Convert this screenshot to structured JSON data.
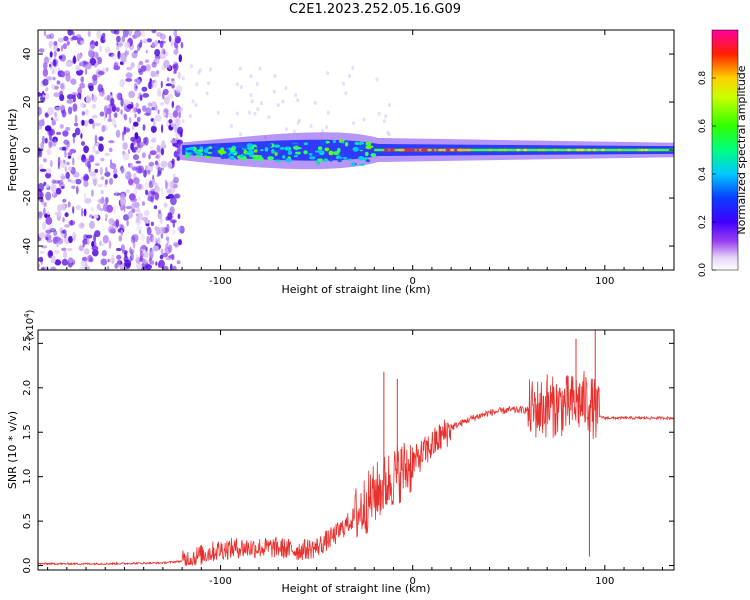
{
  "title": "C2E1.2023.252.05.16.G09",
  "chart_data": [
    {
      "type": "heatmap",
      "description_role": "spectrogram",
      "xlabel": "Height of straight line (km)",
      "ylabel": "Frequency (Hz)",
      "xlim": [
        -195,
        136
      ],
      "ylim": [
        -50,
        50
      ],
      "xticks": [
        -100,
        0,
        100
      ],
      "yticks": [
        -40,
        -20,
        0,
        20,
        40
      ],
      "colorbar": {
        "label": "Normalized spectral amplitude",
        "range": [
          0.0,
          1.0
        ],
        "ticks": [
          "0.0",
          "0.2",
          "0.4",
          "0.6",
          "0.8"
        ],
        "colormap": "rainbow (white→violet→blue→cyan→green→yellow→red→magenta)"
      },
      "regions": [
        {
          "x_range": [
            -195,
            -120
          ],
          "freq_range": [
            -50,
            50
          ],
          "amplitude": "low, broadband noise (violet/purple)"
        },
        {
          "x_range": [
            -120,
            -20
          ],
          "freq_center": -1,
          "freq_halfwidth": 6,
          "amplitude": "0.3-0.6 (blue/cyan/green)"
        },
        {
          "x_range": [
            -20,
            30
          ],
          "freq_center": 0,
          "freq_halfwidth": 3,
          "amplitude": "up to 0.9 (red)"
        },
        {
          "x_range": [
            30,
            136
          ],
          "freq_center": 0,
          "freq_halfwidth": 3,
          "amplitude": "0.4-0.6 (green/yellow)"
        }
      ]
    },
    {
      "type": "line",
      "xlabel": "Height of straight line (km)",
      "ylabel": "SNR (10 * v/v)",
      "y_scale_label": "(x10",
      "y_scale_exponent": "4",
      "y_scale_suffix": ")",
      "xlim": [
        -195,
        136
      ],
      "ylim": [
        -0.05,
        2.65
      ],
      "xticks": [
        -100,
        0,
        100
      ],
      "yticks": [
        "0.0",
        "0.5",
        "1.0",
        "1.5",
        "2.0",
        "2.5"
      ],
      "color": "#e8312e",
      "series": [
        {
          "x": [
            -195,
            -160,
            -130,
            -120,
            -110,
            -100,
            -90,
            -80,
            -70,
            -60,
            -50,
            -40,
            -30,
            -20,
            -10,
            0,
            10,
            20,
            30,
            40,
            50,
            60,
            70,
            80,
            90,
            95,
            97,
            100,
            110,
            120,
            136
          ],
          "values": [
            0.02,
            0.02,
            0.03,
            0.05,
            0.12,
            0.18,
            0.2,
            0.2,
            0.2,
            0.17,
            0.2,
            0.35,
            0.55,
            0.8,
            1.0,
            1.15,
            1.35,
            1.55,
            1.65,
            1.72,
            1.75,
            1.75,
            1.78,
            1.8,
            1.85,
            1.75,
            1.68,
            1.66,
            1.66,
            1.66,
            1.66
          ]
        }
      ],
      "peaks": [
        {
          "x": -15,
          "y": 2.18
        },
        {
          "x": -8,
          "y": 2.1
        },
        {
          "x": 70,
          "y": 2.15
        },
        {
          "x": 85,
          "y": 2.55
        },
        {
          "x": 95,
          "y": 2.65
        },
        {
          "x": 92,
          "y": 0.1
        }
      ]
    }
  ]
}
